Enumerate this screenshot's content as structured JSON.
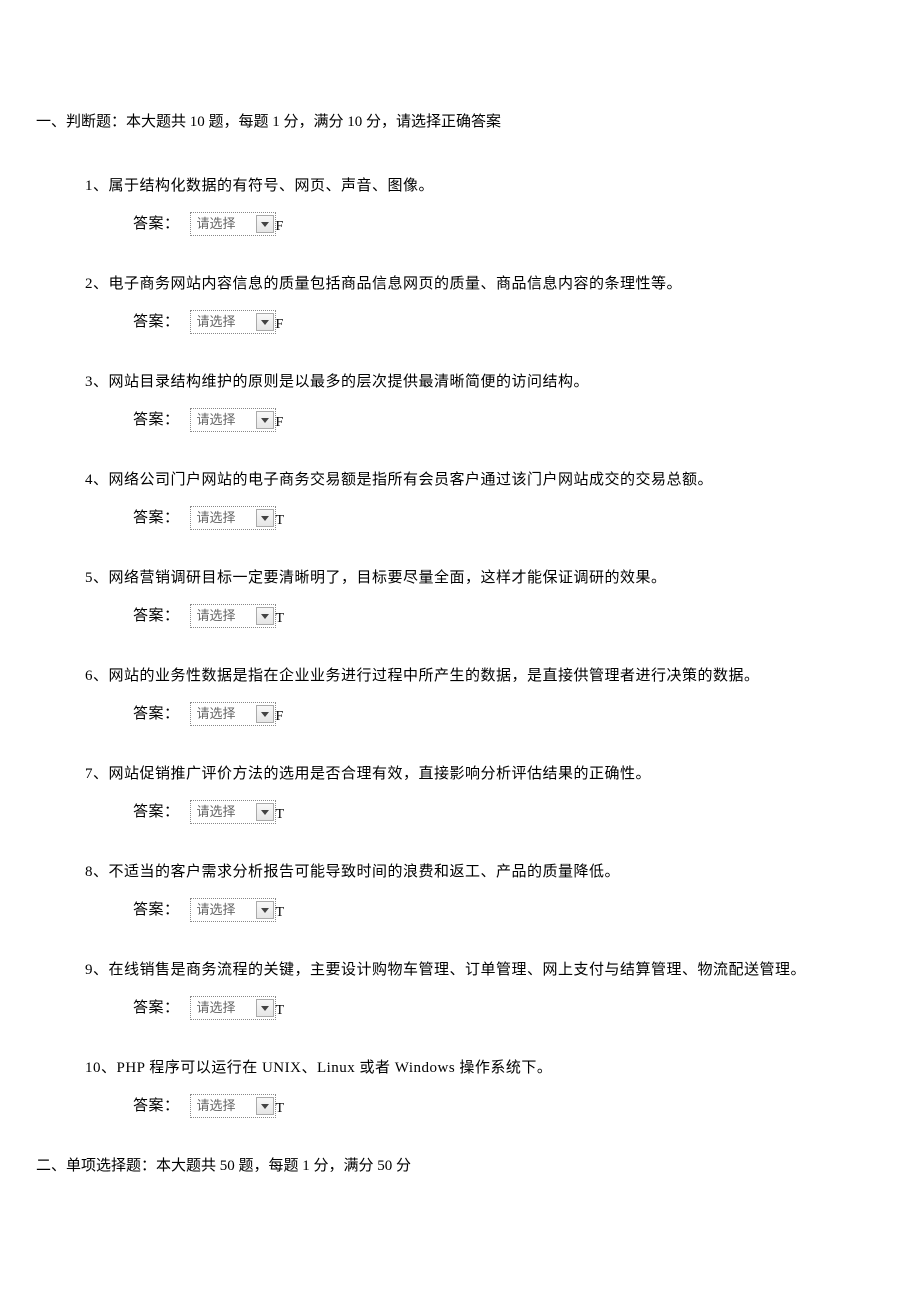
{
  "section1": {
    "header": "一、判断题：本大题共 10 题，每题 1 分，满分 10 分，请选择正确答案",
    "questions": [
      {
        "num": "1",
        "text": "属于结构化数据的有符号、网页、声音、图像。",
        "answer_key": "F"
      },
      {
        "num": "2",
        "text": "电子商务网站内容信息的质量包括商品信息网页的质量、商品信息内容的条理性等。",
        "answer_key": "F"
      },
      {
        "num": "3",
        "text": "网站目录结构维护的原则是以最多的层次提供最清晰简便的访问结构。",
        "answer_key": "F"
      },
      {
        "num": "4",
        "text": "网络公司门户网站的电子商务交易额是指所有会员客户通过该门户网站成交的交易总额。",
        "answer_key": "T"
      },
      {
        "num": "5",
        "text": "网络营销调研目标一定要清晰明了，目标要尽量全面，这样才能保证调研的效果。",
        "answer_key": "T"
      },
      {
        "num": "6",
        "text": "网站的业务性数据是指在企业业务进行过程中所产生的数据，是直接供管理者进行决策的数据。",
        "answer_key": "F"
      },
      {
        "num": "7",
        "text": "网站促销推广评价方法的选用是否合理有效，直接影响分析评估结果的正确性。",
        "answer_key": "T"
      },
      {
        "num": "8",
        "text": "不适当的客户需求分析报告可能导致时间的浪费和返工、产品的质量降低。",
        "answer_key": "T"
      },
      {
        "num": "9",
        "text": "在线销售是商务流程的关键，主要设计购物车管理、订单管理、网上支付与结算管理、物流配送管理。",
        "answer_key": "T"
      },
      {
        "num": "10",
        "text": "PHP 程序可以运行在 UNIX、Linux 或者 Windows 操作系统下。",
        "answer_key": "T"
      }
    ]
  },
  "section2": {
    "header": "二、单项选择题：本大题共 50 题，每题 1 分，满分 50 分"
  },
  "ui": {
    "answer_label": "答案：",
    "select_placeholder": "请选择"
  }
}
